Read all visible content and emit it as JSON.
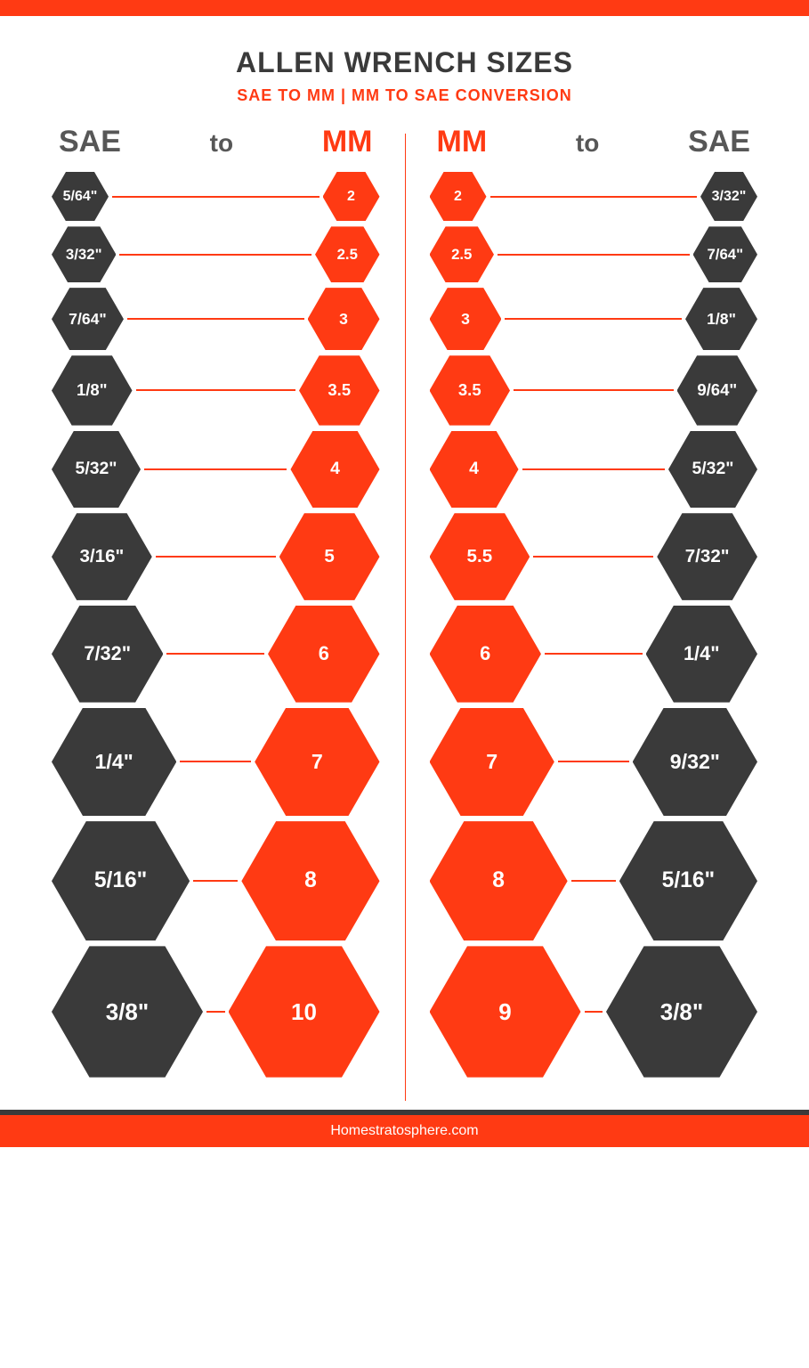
{
  "colors": {
    "orange": "#ff3a13",
    "dark": "#3a3a3a",
    "gray_text": "#575757",
    "white": "#ffffff"
  },
  "layout": {
    "min_hex_width": 64,
    "max_hex_width": 170,
    "hex_font_min": 16,
    "hex_font_max": 26
  },
  "header": {
    "title": "ALLEN WRENCH SIZES",
    "subtitle": "SAE TO MM  |  MM TO SAE CONVERSION"
  },
  "left": {
    "head_left": "SAE",
    "head_mid": "to",
    "head_right": "MM",
    "head_left_color": "#575757",
    "head_right_color": "#ff3a13",
    "rows": [
      {
        "a": "5/64\"",
        "b": "2",
        "scale": 0.0
      },
      {
        "a": "3/32\"",
        "b": "2.5",
        "scale": 0.08
      },
      {
        "a": "7/64\"",
        "b": "3",
        "scale": 0.16
      },
      {
        "a": "1/8\"",
        "b": "3.5",
        "scale": 0.25
      },
      {
        "a": "5/32\"",
        "b": "4",
        "scale": 0.34
      },
      {
        "a": "3/16\"",
        "b": "5",
        "scale": 0.46
      },
      {
        "a": "7/32\"",
        "b": "6",
        "scale": 0.58
      },
      {
        "a": "1/4\"",
        "b": "7",
        "scale": 0.72
      },
      {
        "a": "5/16\"",
        "b": "8",
        "scale": 0.86
      },
      {
        "a": "3/8\"",
        "b": "10",
        "scale": 1.0
      }
    ],
    "a_color": "#3a3a3a",
    "b_color": "#ff3a13"
  },
  "right": {
    "head_left": "MM",
    "head_mid": "to",
    "head_right": "SAE",
    "head_left_color": "#ff3a13",
    "head_right_color": "#575757",
    "rows": [
      {
        "a": "2",
        "b": "3/32\"",
        "scale": 0.0
      },
      {
        "a": "2.5",
        "b": "7/64\"",
        "scale": 0.08
      },
      {
        "a": "3",
        "b": "1/8\"",
        "scale": 0.16
      },
      {
        "a": "3.5",
        "b": "9/64\"",
        "scale": 0.25
      },
      {
        "a": "4",
        "b": "5/32\"",
        "scale": 0.34
      },
      {
        "a": "5.5",
        "b": "7/32\"",
        "scale": 0.46
      },
      {
        "a": "6",
        "b": "1/4\"",
        "scale": 0.58
      },
      {
        "a": "7",
        "b": "9/32\"",
        "scale": 0.72
      },
      {
        "a": "8",
        "b": "5/16\"",
        "scale": 0.86
      },
      {
        "a": "9",
        "b": "3/8\"",
        "scale": 1.0
      }
    ],
    "a_color": "#ff3a13",
    "b_color": "#3a3a3a"
  },
  "footer": {
    "credit": "Homestratosphere.com"
  }
}
